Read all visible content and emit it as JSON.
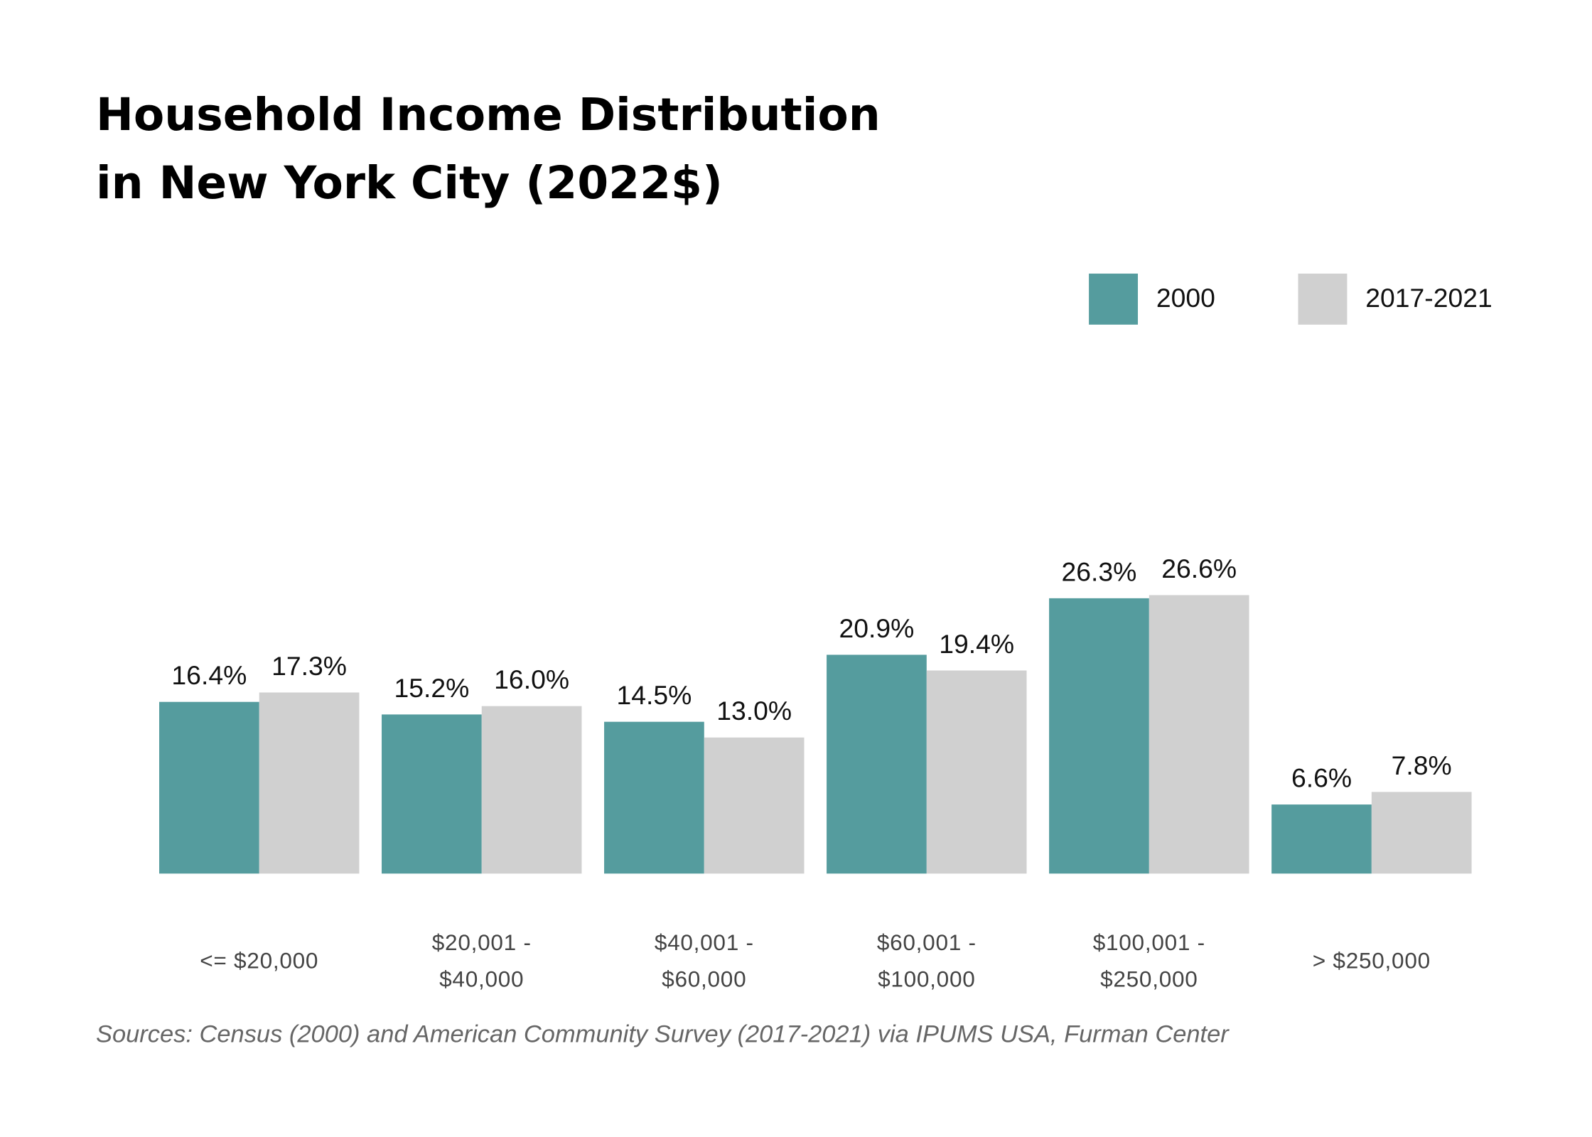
{
  "chart_data": {
    "type": "bar",
    "title": [
      "Household Income Distribution",
      "in New York City (2022$)"
    ],
    "categories": [
      [
        "<= $20,000"
      ],
      [
        "$20,001 -",
        "$40,000"
      ],
      [
        "$40,001 -",
        "$60,000"
      ],
      [
        "$60,001 -",
        "$100,000"
      ],
      [
        "$100,001 -",
        "$250,000"
      ],
      [
        "> $250,000"
      ]
    ],
    "series": [
      {
        "name": "2000",
        "color": "#559c9e",
        "values": [
          16.4,
          15.2,
          14.5,
          20.9,
          26.3,
          6.6
        ],
        "value_labels": [
          "16.4%",
          "15.2%",
          "14.5%",
          "20.9%",
          "26.3%",
          "6.6%"
        ]
      },
      {
        "name": "2017-2021",
        "color": "#d0d0d0",
        "values": [
          17.3,
          16.0,
          13.0,
          19.4,
          26.6,
          7.8
        ],
        "value_labels": [
          "17.3%",
          "16.0%",
          "13.0%",
          "19.4%",
          "26.6%",
          "7.8%"
        ]
      }
    ],
    "source": "Sources: Census (2000) and American Community Survey (2017-2021) via IPUMS USA, Furman Center",
    "legend": "top-right"
  }
}
